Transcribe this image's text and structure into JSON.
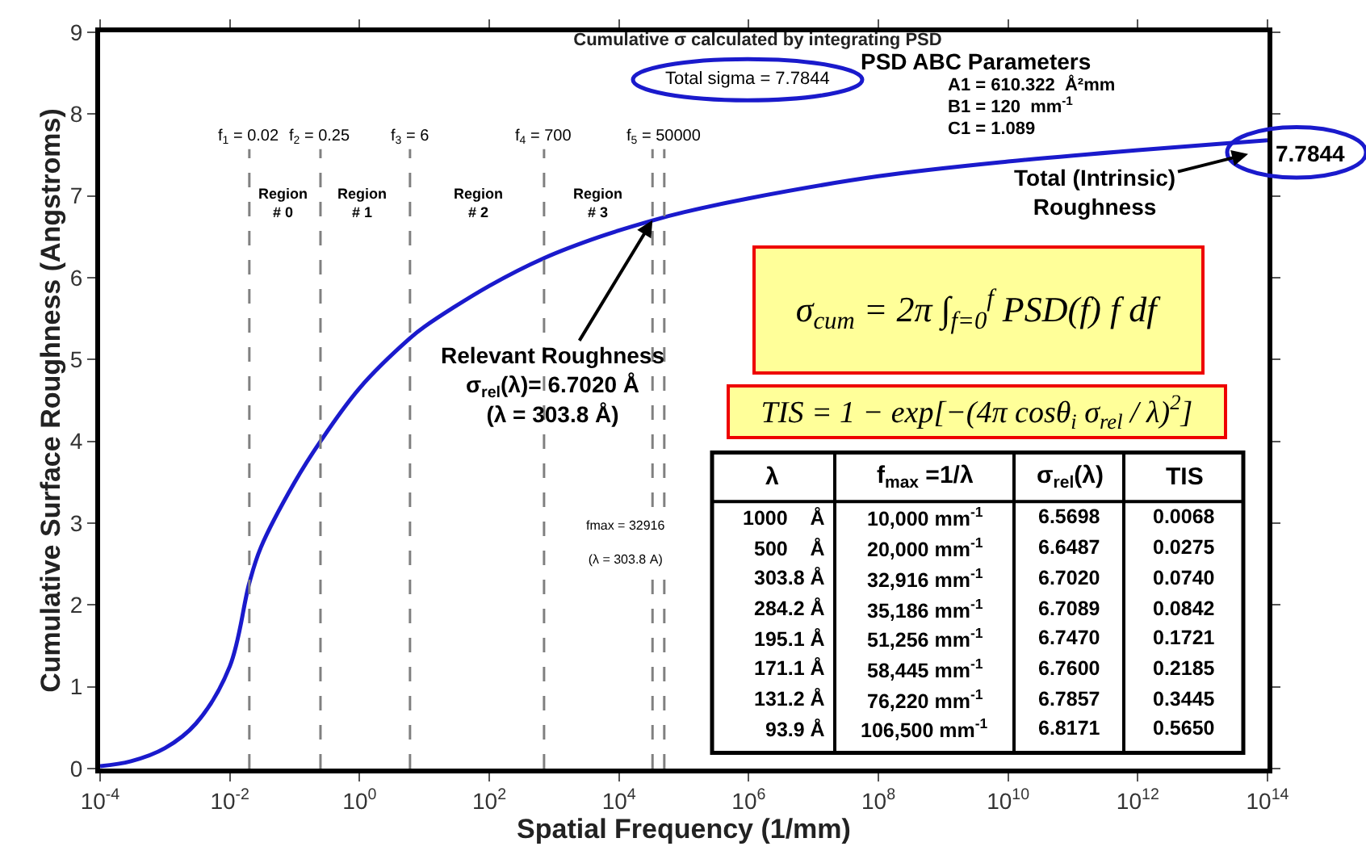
{
  "chart_data": {
    "type": "line",
    "title": "Cumulative σ calculated by integrating PSD",
    "xlabel": "Spatial Frequency (1/mm)",
    "ylabel": "Cumulative Surface Roughness (Angstroms)",
    "log": "x",
    "x": [
      0.0001,
      0.0003,
      0.001,
      0.003,
      0.01,
      0.02,
      0.03,
      0.1,
      0.25,
      1,
      6,
      10,
      100,
      700,
      5000,
      32916,
      100000,
      1000000,
      100000000,
      10000000000,
      1000000000000,
      100000000000000
    ],
    "series": [
      {
        "color": "#1a1acc",
        "values": [
          0.03,
          0.09,
          0.25,
          0.55,
          1.25,
          2.27,
          2.7,
          3.5,
          4.0,
          4.65,
          5.26,
          5.4,
          5.9,
          6.24,
          6.5,
          6.7,
          6.8,
          6.97,
          7.24,
          7.42,
          7.56,
          7.68
        ]
      }
    ],
    "xlim": [
      0.0001,
      100000000000000
    ],
    "xticks": [
      {
        "value": 0.0001,
        "label": "10$^{-4}$"
      },
      {
        "value": 0.01,
        "label": "10$^{-2}$"
      },
      {
        "value": 1,
        "label": "10$^{0}$"
      },
      {
        "value": 100,
        "label": "10$^{2}$"
      },
      {
        "value": 10000,
        "label": "10$^{4}$"
      },
      {
        "value": 1000000,
        "label": "10$^{6}$"
      },
      {
        "value": 100000000,
        "label": "10$^{8}$"
      },
      {
        "value": 10000000000,
        "label": "10$^{10}$"
      },
      {
        "value": 1000000000000,
        "label": "10$^{12}$"
      },
      {
        "value": 100000000000000,
        "label": "10$^{14}$"
      }
    ],
    "ylim": [
      0,
      9
    ],
    "yticks": [
      0,
      1,
      2,
      3,
      4,
      5,
      6,
      7,
      8,
      9
    ],
    "marker": "none",
    "line_style": "solid",
    "ref_lines": [
      {
        "axis": "x",
        "value": 0.02,
        "label": "f$_{1}$ = 0.02",
        "color": "#808080",
        "line_style": "dashed"
      },
      {
        "axis": "x",
        "value": 0.25,
        "label": "f$_{2}$ = 0.25",
        "color": "#808080",
        "line_style": "dashed"
      },
      {
        "axis": "x",
        "value": 6,
        "label": "f$_{3}$ = 6",
        "color": "#808080",
        "line_style": "dashed"
      },
      {
        "axis": "x",
        "value": 700,
        "label": "f$_{4}$ = 700",
        "color": "#808080",
        "line_style": "dashed"
      },
      {
        "axis": "x",
        "value": 50000,
        "label": "f$_{5}$ = 50000",
        "color": "#808080",
        "line_style": "dashed"
      },
      {
        "axis": "x",
        "value": 32916,
        "label": "fmax = 32916\n\n(λ = 303.8 A)",
        "color": "#808080",
        "line_style": "dashed"
      }
    ],
    "annotations": [
      "Total sigma = 7.7844",
      "PSD ABC Parameters",
      "A1 = 610.322  Å²mm",
      "B1 = 120  mm$^{-1}$",
      "C1 = 1.089",
      "σ$_{cum}$ = 2π ∫$_{f=0}$$^{f}$ PSD(f) f df",
      "TIS = 1 − exp[−(4π cosθ$_{i}$ σ$_{rel}$ / λ)$^{2}$]",
      "Region\n# 0",
      "Region\n# 1",
      "Region\n# 2",
      "Region\n# 3",
      "7.7844",
      "Total (Intrinsic)\nRoughness",
      "λ",
      "f$_{max}$ =1/λ",
      "σ$_{rel}$(λ)",
      "TIS",
      "1000    Å",
      "10,000 mm$^{-1}$",
      "6.5698",
      "0.0068",
      "500    Å",
      "20,000 mm$^{-1}$",
      "6.6487",
      "0.0275",
      "303.8 Å",
      "32,916 mm$^{-1}$",
      "6.7020",
      "0.0740",
      "284.2 Å",
      "35,186 mm$^{-1}$",
      "6.7089",
      "0.0842",
      "195.1 Å",
      "51,256 mm$^{-1}$",
      "6.7470",
      "0.1721",
      "171.1 Å",
      "58,445 mm$^{-1}$",
      "6.7600",
      "0.2185",
      "131.2 Å",
      "76,220 mm$^{-1}$",
      "6.7857",
      "0.3445",
      "93.9 Å",
      "106,500 mm$^{-1}$",
      "6.8171",
      "0.5650",
      {
        "text": "Relevant Roughness\nσ$_{rel}$(λ)= 6.7020 Å\n(λ = 303.8 Å)",
        "x": 32916,
        "y": 6.702
      }
    ]
  }
}
